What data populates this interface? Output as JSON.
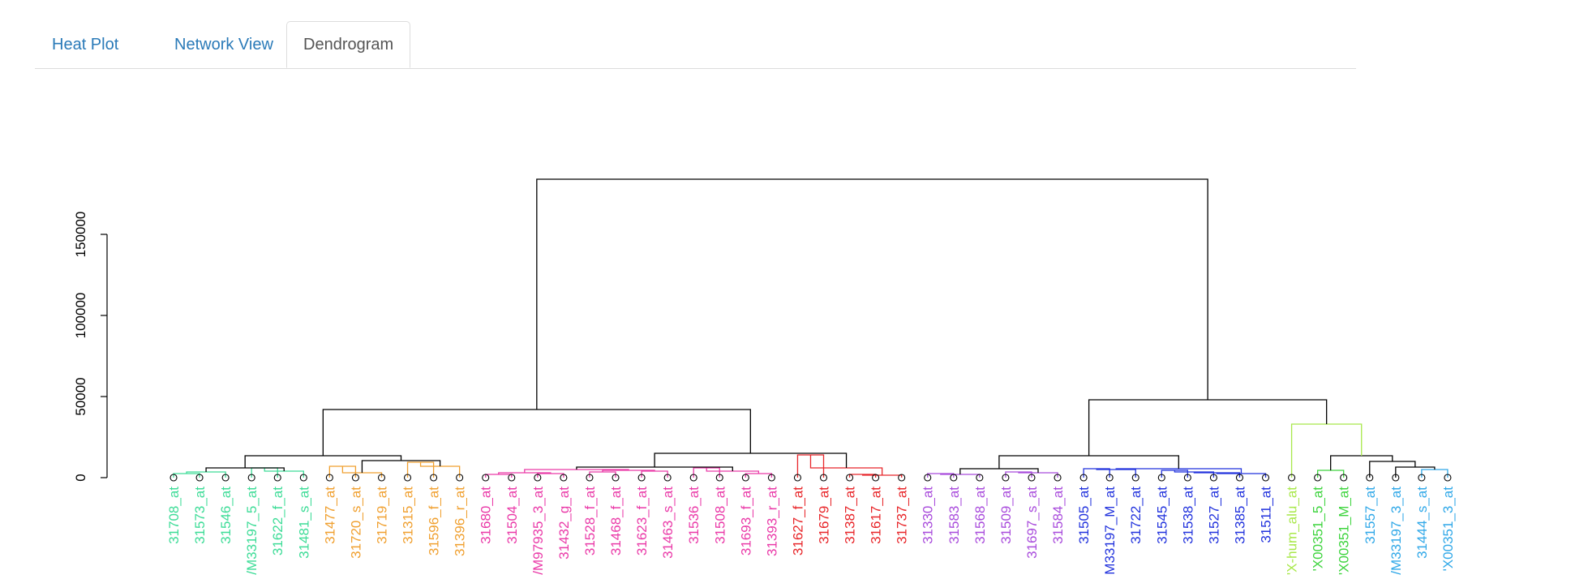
{
  "tabs": [
    {
      "label": "Heat Plot",
      "active": false
    },
    {
      "label": "Network View",
      "active": false
    },
    {
      "label": "Dendrogram",
      "active": true
    }
  ],
  "chart_data": {
    "type": "dendrogram",
    "title": "",
    "xlabel": "",
    "ylabel": "",
    "ylim": [
      0,
      190000
    ],
    "yticks": [
      "0",
      "50000",
      "100000",
      "150000"
    ],
    "leaves": [
      {
        "label": "31708_at",
        "color": "#3ddc97"
      },
      {
        "label": "31573_at",
        "color": "#3ddc97"
      },
      {
        "label": "31546_at",
        "color": "#3ddc97"
      },
      {
        "label": "/M33197_5_at",
        "color": "#3ddc97"
      },
      {
        "label": "31622_f_at",
        "color": "#3ddc97"
      },
      {
        "label": "31481_s_at",
        "color": "#3ddc97"
      },
      {
        "label": "31477_at",
        "color": "#f0a030"
      },
      {
        "label": "31720_s_at",
        "color": "#f0a030"
      },
      {
        "label": "31719_at",
        "color": "#f0a030"
      },
      {
        "label": "31315_at",
        "color": "#f0a030"
      },
      {
        "label": "31596_f_at",
        "color": "#f0a030"
      },
      {
        "label": "31396_r_at",
        "color": "#f0a030"
      },
      {
        "label": "31680_at",
        "color": "#ea3aa8"
      },
      {
        "label": "31504_at",
        "color": "#ea3aa8"
      },
      {
        "label": "/M97935_3_at",
        "color": "#ea3aa8"
      },
      {
        "label": "31432_g_at",
        "color": "#ea3aa8"
      },
      {
        "label": "31528_f_at",
        "color": "#ea3aa8"
      },
      {
        "label": "31468_f_at",
        "color": "#ea3aa8"
      },
      {
        "label": "31623_f_at",
        "color": "#ea3aa8"
      },
      {
        "label": "31463_s_at",
        "color": "#ea3aa8"
      },
      {
        "label": "31536_at",
        "color": "#ea3aa8"
      },
      {
        "label": "31508_at",
        "color": "#ea3aa8"
      },
      {
        "label": "31693_f_at",
        "color": "#ea3aa8"
      },
      {
        "label": "31393_r_at",
        "color": "#ea3aa8"
      },
      {
        "label": "31627_f_at",
        "color": "#e8262a"
      },
      {
        "label": "31679_at",
        "color": "#e8262a"
      },
      {
        "label": "31387_at",
        "color": "#e8262a"
      },
      {
        "label": "31617_at",
        "color": "#e8262a"
      },
      {
        "label": "31737_at",
        "color": "#e8262a"
      },
      {
        "label": "31330_at",
        "color": "#a94cdc"
      },
      {
        "label": "31583_at",
        "color": "#a94cdc"
      },
      {
        "label": "31568_at",
        "color": "#a94cdc"
      },
      {
        "label": "31509_at",
        "color": "#a94cdc"
      },
      {
        "label": "31697_s_at",
        "color": "#a94cdc"
      },
      {
        "label": "31584_at",
        "color": "#a94cdc"
      },
      {
        "label": "31505_at",
        "color": "#2233dd"
      },
      {
        "label": "M33197_M_at",
        "color": "#2233dd"
      },
      {
        "label": "31722_at",
        "color": "#2233dd"
      },
      {
        "label": "31545_at",
        "color": "#2233dd"
      },
      {
        "label": "31538_at",
        "color": "#2233dd"
      },
      {
        "label": "31527_at",
        "color": "#2233dd"
      },
      {
        "label": "31385_at",
        "color": "#2233dd"
      },
      {
        "label": "31511_at",
        "color": "#2233dd"
      },
      {
        "label": "'X-hum_alu_at",
        "color": "#a8e84a"
      },
      {
        "label": "'X00351_5_at",
        "color": "#3ed43e"
      },
      {
        "label": "'X00351_M_at",
        "color": "#3ed43e"
      },
      {
        "label": "31557_at",
        "color": "#30a8e8"
      },
      {
        "label": "/M33197_3_at",
        "color": "#30a8e8"
      },
      {
        "label": "31444_s_at",
        "color": "#30a8e8"
      },
      {
        "label": "'X00351_3_at",
        "color": "#30a8e8"
      }
    ],
    "merges": [
      {
        "a": [
          "leaf",
          0
        ],
        "b": [
          "leaf",
          1
        ],
        "h": 2500,
        "color": "#3ddc97"
      },
      {
        "a": [
          "node",
          0
        ],
        "b": [
          "leaf",
          2
        ],
        "h": 3500,
        "color": "#3ddc97"
      },
      {
        "a": [
          "leaf",
          3
        ],
        "b": [
          "leaf",
          4
        ],
        "h": 6000,
        "color": "#3ddc97"
      },
      {
        "a": [
          "node",
          2
        ],
        "b": [
          "leaf",
          5
        ],
        "h": 4000,
        "color": "#3ddc97"
      },
      {
        "a": [
          "node",
          1
        ],
        "b": [
          "node",
          3
        ],
        "h": 6000,
        "color": "#000000"
      },
      {
        "a": [
          "leaf",
          6
        ],
        "b": [
          "leaf",
          7
        ],
        "h": 7000,
        "color": "#f0a030"
      },
      {
        "a": [
          "node",
          5
        ],
        "b": [
          "leaf",
          8
        ],
        "h": 3000,
        "color": "#f0a030"
      },
      {
        "a": [
          "leaf",
          9
        ],
        "b": [
          "leaf",
          10
        ],
        "h": 9500,
        "color": "#f0a030"
      },
      {
        "a": [
          "node",
          7
        ],
        "b": [
          "leaf",
          11
        ],
        "h": 7000,
        "color": "#f0a030"
      },
      {
        "a": [
          "node",
          6
        ],
        "b": [
          "node",
          8
        ],
        "h": 10500,
        "color": "#000000"
      },
      {
        "a": [
          "node",
          4
        ],
        "b": [
          "node",
          9
        ],
        "h": 13500,
        "color": "#000000"
      },
      {
        "a": [
          "leaf",
          12
        ],
        "b": [
          "leaf",
          13
        ],
        "h": 2000,
        "color": "#ea3aa8"
      },
      {
        "a": [
          "leaf",
          14
        ],
        "b": [
          "leaf",
          15
        ],
        "h": 2500,
        "color": "#ea3aa8"
      },
      {
        "a": [
          "node",
          11
        ],
        "b": [
          "node",
          12
        ],
        "h": 3000,
        "color": "#ea3aa8"
      },
      {
        "a": [
          "leaf",
          16
        ],
        "b": [
          "leaf",
          17
        ],
        "h": 3500,
        "color": "#ea3aa8"
      },
      {
        "a": [
          "leaf",
          18
        ],
        "b": [
          "leaf",
          19
        ],
        "h": 4000,
        "color": "#ea3aa8"
      },
      {
        "a": [
          "node",
          14
        ],
        "b": [
          "node",
          15
        ],
        "h": 4500,
        "color": "#ea3aa8"
      },
      {
        "a": [
          "node",
          13
        ],
        "b": [
          "node",
          16
        ],
        "h": 5000,
        "color": "#ea3aa8"
      },
      {
        "a": [
          "leaf",
          20
        ],
        "b": [
          "leaf",
          21
        ],
        "h": 6000,
        "color": "#ea3aa8"
      },
      {
        "a": [
          "leaf",
          22
        ],
        "b": [
          "leaf",
          23
        ],
        "h": 2500,
        "color": "#ea3aa8"
      },
      {
        "a": [
          "node",
          18
        ],
        "b": [
          "node",
          19
        ],
        "h": 4000,
        "color": "#ea3aa8"
      },
      {
        "a": [
          "node",
          17
        ],
        "b": [
          "node",
          20
        ],
        "h": 6500,
        "color": "#000000"
      },
      {
        "a": [
          "leaf",
          24
        ],
        "b": [
          "leaf",
          25
        ],
        "h": 14000,
        "color": "#e8262a"
      },
      {
        "a": [
          "leaf",
          26
        ],
        "b": [
          "leaf",
          27
        ],
        "h": 2000,
        "color": "#e8262a"
      },
      {
        "a": [
          "node",
          23
        ],
        "b": [
          "leaf",
          28
        ],
        "h": 1500,
        "color": "#e8262a"
      },
      {
        "a": [
          "node",
          22
        ],
        "b": [
          "node",
          24
        ],
        "h": 6000,
        "color": "#e8262a"
      },
      {
        "a": [
          "node",
          21
        ],
        "b": [
          "node",
          25
        ],
        "h": 15000,
        "color": "#000000"
      },
      {
        "a": [
          "node",
          10
        ],
        "b": [
          "node",
          26
        ],
        "h": 42000,
        "color": "#000000"
      },
      {
        "a": [
          "leaf",
          29
        ],
        "b": [
          "leaf",
          30
        ],
        "h": 2500,
        "color": "#a94cdc"
      },
      {
        "a": [
          "node",
          28
        ],
        "b": [
          "leaf",
          31
        ],
        "h": 2000,
        "color": "#a94cdc"
      },
      {
        "a": [
          "leaf",
          32
        ],
        "b": [
          "leaf",
          33
        ],
        "h": 3500,
        "color": "#a94cdc"
      },
      {
        "a": [
          "node",
          30
        ],
        "b": [
          "leaf",
          34
        ],
        "h": 3000,
        "color": "#a94cdc"
      },
      {
        "a": [
          "node",
          29
        ],
        "b": [
          "node",
          31
        ],
        "h": 5500,
        "color": "#000000"
      },
      {
        "a": [
          "leaf",
          35
        ],
        "b": [
          "leaf",
          36
        ],
        "h": 5500,
        "color": "#2233dd"
      },
      {
        "a": [
          "node",
          33
        ],
        "b": [
          "leaf",
          37
        ],
        "h": 5000,
        "color": "#2233dd"
      },
      {
        "a": [
          "leaf",
          38
        ],
        "b": [
          "leaf",
          39
        ],
        "h": 4500,
        "color": "#2233dd"
      },
      {
        "a": [
          "node",
          35
        ],
        "b": [
          "leaf",
          40
        ],
        "h": 3500,
        "color": "#2233dd"
      },
      {
        "a": [
          "node",
          36
        ],
        "b": [
          "leaf",
          41
        ],
        "h": 3000,
        "color": "#2233dd"
      },
      {
        "a": [
          "node",
          37
        ],
        "b": [
          "leaf",
          42
        ],
        "h": 2500,
        "color": "#2233dd"
      },
      {
        "a": [
          "node",
          34
        ],
        "b": [
          "node",
          38
        ],
        "h": 5500,
        "color": "#2233dd"
      },
      {
        "a": [
          "node",
          32
        ],
        "b": [
          "node",
          39
        ],
        "h": 13500,
        "color": "#000000"
      },
      {
        "a": [
          "leaf",
          44
        ],
        "b": [
          "leaf",
          45
        ],
        "h": 4500,
        "color": "#3ed43e"
      },
      {
        "a": [
          "leaf",
          48
        ],
        "b": [
          "leaf",
          49
        ],
        "h": 5000,
        "color": "#30a8e8"
      },
      {
        "a": [
          "leaf",
          47
        ],
        "b": [
          "node",
          42
        ],
        "h": 6500,
        "color": "#000000"
      },
      {
        "a": [
          "leaf",
          46
        ],
        "b": [
          "node",
          43
        ],
        "h": 10000,
        "color": "#000000"
      },
      {
        "a": [
          "node",
          41
        ],
        "b": [
          "node",
          44
        ],
        "h": 13500,
        "color": "#000000"
      },
      {
        "a": [
          "leaf",
          43
        ],
        "b": [
          "node",
          45
        ],
        "h": 33000,
        "color": "#a8e84a"
      },
      {
        "a": [
          "node",
          40
        ],
        "b": [
          "node",
          46
        ],
        "h": 48000,
        "color": "#000000"
      },
      {
        "a": [
          "node",
          27
        ],
        "b": [
          "node",
          47
        ],
        "h": 184000,
        "color": "#000000"
      }
    ]
  }
}
